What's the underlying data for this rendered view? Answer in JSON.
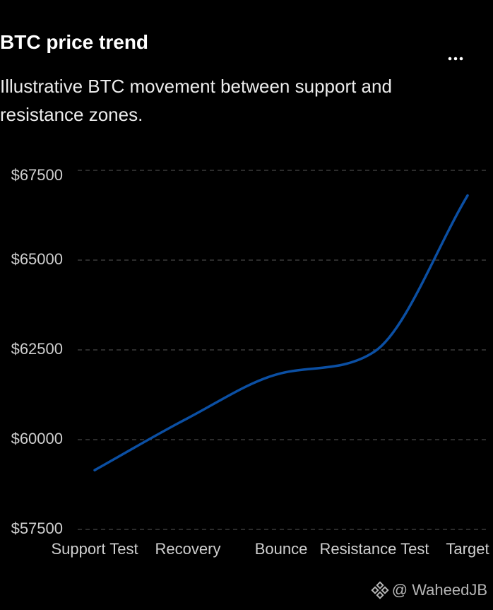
{
  "chart_data": {
    "type": "line",
    "title": "BTC price trend",
    "subtitle": "Illustrative BTC movement between support and resistance zones.",
    "categories": [
      "Support Test",
      "Recovery",
      "Bounce",
      "Resistance Test",
      "Target"
    ],
    "series": [
      {
        "name": "BTC",
        "color": "#0b4fa3",
        "values": [
          59150,
          60600,
          61850,
          62450,
          66800
        ]
      }
    ],
    "ylim": [
      57500,
      67500
    ],
    "yticks": [
      {
        "value": 57500,
        "label": "$57500"
      },
      {
        "value": 60000,
        "label": "$60000"
      },
      {
        "value": 62500,
        "label": "$62500"
      },
      {
        "value": 65000,
        "label": "$65000"
      },
      {
        "value": 67500,
        "label": "$67500"
      }
    ],
    "grid": true,
    "watermark": "@ WaheedJB"
  }
}
